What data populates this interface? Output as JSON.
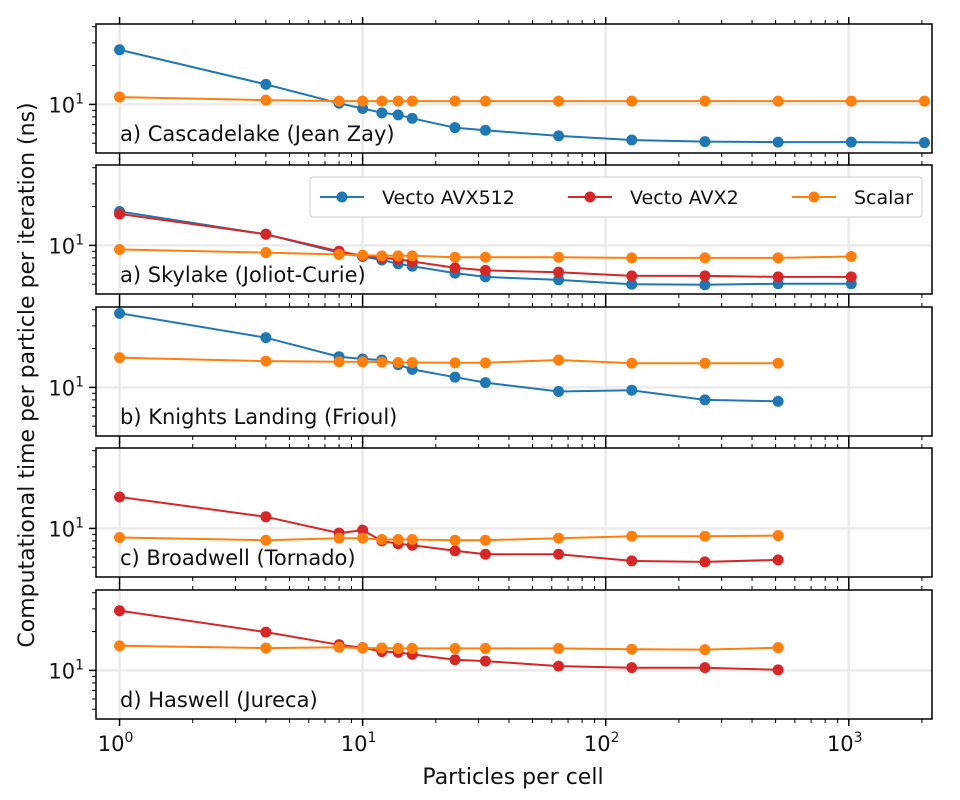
{
  "colors": {
    "avx512": "#1f77b4",
    "avx2": "#d62728",
    "scalar": "#ff7f0e",
    "grid": "#ebebeb",
    "axis": "#000000"
  },
  "chart_data": {
    "type": "line",
    "xlabel": "Particles per cell",
    "ylabel": "Computational time per particle per iteration (ns)",
    "xscale": "log",
    "yscale": "log",
    "xlim": [
      0.8,
      2200
    ],
    "xticks": [
      {
        "value": 1,
        "label": "10^0"
      },
      {
        "value": 10,
        "label": "10^1"
      },
      {
        "value": 100,
        "label": "10^2"
      },
      {
        "value": 1000,
        "label": "10^3"
      }
    ],
    "ytick": {
      "value": 10,
      "label": "10^1"
    },
    "grid": true,
    "legend": {
      "placement": "top-right of second panel",
      "entries": [
        {
          "name": "Vecto AVX512",
          "color_key": "avx512"
        },
        {
          "name": "Vecto AVX2",
          "color_key": "avx2"
        },
        {
          "name": "Scalar",
          "color_key": "scalar"
        }
      ]
    },
    "panels": [
      {
        "title": "a) Cascadelake (Jean Zay)",
        "ylim": [
          4.2,
          42
        ],
        "series": [
          {
            "name": "Vecto AVX512",
            "color_key": "avx512",
            "x": [
              1,
              4,
              8,
              10,
              12,
              14,
              16,
              24,
              32,
              64,
              128,
              256,
              512,
              1024,
              2048
            ],
            "y": [
              26.5,
              14.3,
              10.2,
              9.3,
              8.6,
              8.3,
              7.8,
              6.6,
              6.3,
              5.7,
              5.3,
              5.15,
              5.1,
              5.1,
              5.05
            ]
          },
          {
            "name": "Scalar",
            "color_key": "scalar",
            "x": [
              1,
              4,
              8,
              10,
              12,
              14,
              16,
              24,
              32,
              64,
              128,
              256,
              512,
              1024,
              2048
            ],
            "y": [
              11.4,
              10.8,
              10.6,
              10.6,
              10.6,
              10.6,
              10.6,
              10.6,
              10.6,
              10.6,
              10.6,
              10.6,
              10.6,
              10.6,
              10.6
            ]
          }
        ]
      },
      {
        "title": "a) Skylake (Joliot-Curie)",
        "ylim": [
          4.2,
          42
        ],
        "series": [
          {
            "name": "Vecto AVX512",
            "color_key": "avx512",
            "x": [
              1,
              4,
              8,
              10,
              12,
              14,
              16,
              24,
              32,
              64,
              128,
              256,
              512,
              1024
            ],
            "y": [
              18.3,
              12.2,
              8.8,
              8.2,
              7.7,
              7.2,
              6.9,
              6.1,
              5.7,
              5.4,
              5.0,
              4.95,
              5.05,
              5.05
            ]
          },
          {
            "name": "Vecto AVX2",
            "color_key": "avx2",
            "x": [
              1,
              4,
              8,
              10,
              12,
              14,
              16,
              24,
              32,
              64,
              128,
              256,
              512,
              1024
            ],
            "y": [
              17.5,
              12.2,
              9.0,
              8.3,
              8.0,
              7.8,
              7.5,
              6.7,
              6.4,
              6.2,
              5.8,
              5.8,
              5.7,
              5.7
            ]
          },
          {
            "name": "Scalar",
            "color_key": "scalar",
            "x": [
              1,
              4,
              8,
              10,
              12,
              14,
              16,
              24,
              32,
              64,
              128,
              256,
              512,
              1024
            ],
            "y": [
              9.3,
              8.8,
              8.5,
              8.4,
              8.3,
              8.3,
              8.3,
              8.1,
              8.1,
              8.1,
              8.0,
              8.0,
              8.0,
              8.2
            ]
          }
        ]
      },
      {
        "title": "b) Knights Landing (Frioul)",
        "ylim": [
          4.2,
          42
        ],
        "series": [
          {
            "name": "Vecto AVX512",
            "color_key": "avx512",
            "x": [
              1,
              4,
              8,
              10,
              12,
              14,
              16,
              24,
              32,
              64,
              128,
              256,
              512
            ],
            "y": [
              37.5,
              24.3,
              17.3,
              16.6,
              16.3,
              15.0,
              13.8,
              12.0,
              10.9,
              9.3,
              9.5,
              8.0,
              7.8
            ]
          },
          {
            "name": "Scalar",
            "color_key": "scalar",
            "x": [
              1,
              4,
              8,
              10,
              12,
              14,
              16,
              24,
              32,
              64,
              128,
              256,
              512
            ],
            "y": [
              17.0,
              16.0,
              15.8,
              15.8,
              15.7,
              15.6,
              15.6,
              15.5,
              15.5,
              16.3,
              15.4,
              15.4,
              15.4
            ]
          }
        ]
      },
      {
        "title": "c) Broadwell (Tornado)",
        "ylim": [
          4.2,
          42
        ],
        "series": [
          {
            "name": "Vecto AVX2",
            "color_key": "avx2",
            "x": [
              1,
              4,
              8,
              10,
              12,
              14,
              16,
              24,
              32,
              64,
              128,
              256,
              512
            ],
            "y": [
              17.5,
              12.3,
              9.2,
              9.7,
              8.0,
              7.6,
              7.4,
              6.7,
              6.3,
              6.3,
              5.6,
              5.5,
              5.7
            ]
          },
          {
            "name": "Scalar",
            "color_key": "scalar",
            "x": [
              1,
              4,
              8,
              10,
              12,
              14,
              16,
              24,
              32,
              64,
              128,
              256,
              512
            ],
            "y": [
              8.5,
              8.1,
              8.4,
              8.4,
              8.2,
              8.2,
              8.2,
              8.1,
              8.1,
              8.4,
              8.7,
              8.7,
              8.8
            ]
          }
        ]
      },
      {
        "title": "d) Haswell (Jureca)",
        "ylim": [
          4.2,
          42
        ],
        "series": [
          {
            "name": "Vecto AVX2",
            "color_key": "avx2",
            "x": [
              1,
              4,
              8,
              10,
              12,
              14,
              16,
              24,
              32,
              64,
              128,
              256,
              512
            ],
            "y": [
              29.0,
              19.8,
              15.8,
              15.0,
              14.0,
              13.8,
              13.3,
              12.1,
              11.8,
              10.8,
              10.5,
              10.5,
              10.1
            ]
          },
          {
            "name": "Scalar",
            "color_key": "scalar",
            "x": [
              1,
              4,
              8,
              10,
              12,
              14,
              16,
              24,
              32,
              64,
              128,
              256,
              512
            ],
            "y": [
              15.5,
              14.9,
              15.1,
              14.9,
              14.9,
              14.8,
              14.8,
              14.8,
              14.8,
              14.8,
              14.6,
              14.5,
              15.0
            ]
          }
        ]
      }
    ]
  }
}
